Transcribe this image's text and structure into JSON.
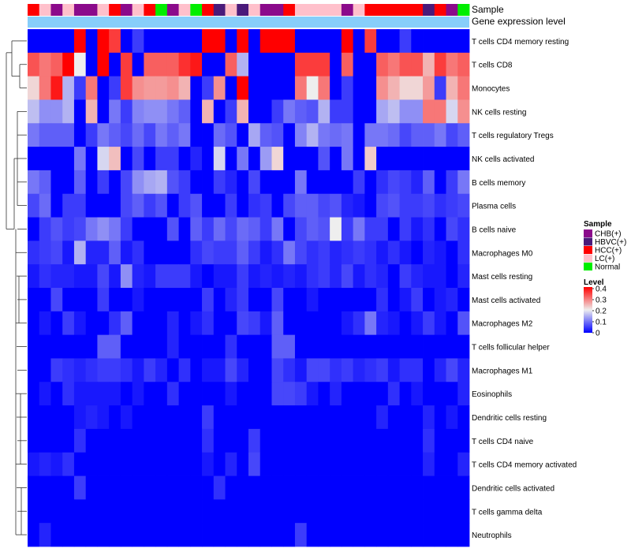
{
  "chart_data": {
    "type": "heatmap",
    "title": "",
    "annotations": {
      "sample_label": "Sample",
      "expression_label": "Gene expression level"
    },
    "legend": {
      "position": "right",
      "sample_title": "Sample",
      "level_title": "Level",
      "groups": [
        {
          "name": "CHB(+)",
          "color": "#8B0A8B"
        },
        {
          "name": "HBVC(+)",
          "color": "#4A1A7A"
        },
        {
          "name": "HCC(+)",
          "color": "#FF0000"
        },
        {
          "name": "LC(+)",
          "color": "#FFC0CB"
        },
        {
          "name": "Normal",
          "color": "#00EE00"
        }
      ],
      "level_ticks": [
        "0",
        "0.1",
        "0.2",
        "0.3",
        "0.4"
      ],
      "level_range": [
        0,
        0.4
      ]
    },
    "colors": {
      "low": "#0000FF",
      "mid": "#EEEEEE",
      "high": "#FF0000",
      "expression_bar": "#87CEFA"
    },
    "columns_sample": [
      "HCC(+)",
      "LC(+)",
      "CHB(+)",
      "LC(+)",
      "CHB(+)",
      "CHB(+)",
      "LC(+)",
      "HCC(+)",
      "CHB(+)",
      "LC(+)",
      "HCC(+)",
      "Normal",
      "CHB(+)",
      "LC(+)",
      "Normal",
      "HCC(+)",
      "HBVC(+)",
      "LC(+)",
      "HBVC(+)",
      "LC(+)",
      "CHB(+)",
      "CHB(+)",
      "HCC(+)",
      "LC(+)",
      "LC(+)",
      "LC(+)",
      "LC(+)",
      "CHB(+)",
      "LC(+)",
      "HCC(+)",
      "HCC(+)",
      "HCC(+)",
      "HCC(+)",
      "HCC(+)",
      "HBVC(+)",
      "HCC(+)",
      "CHB(+)",
      "Normal"
    ],
    "rows": [
      {
        "name": "T cells CD4 memory resting",
        "values": [
          0,
          0,
          0,
          0,
          0.4,
          0,
          0.4,
          0.35,
          0,
          0.05,
          0,
          0,
          0,
          0,
          0,
          0.4,
          0.4,
          0,
          0.4,
          0,
          0.4,
          0.4,
          0.4,
          0,
          0,
          0,
          0,
          0.4,
          0,
          0.35,
          0,
          0,
          0.05,
          0,
          0,
          0,
          0,
          0
        ]
      },
      {
        "name": "T cells CD8",
        "values": [
          0.33,
          0.3,
          0.32,
          0.4,
          0.2,
          0,
          0.4,
          0,
          0.35,
          0,
          0.32,
          0.32,
          0.32,
          0.36,
          0.38,
          0,
          0,
          0.32,
          0.15,
          0,
          0,
          0,
          0,
          0.35,
          0.35,
          0.35,
          0,
          0.32,
          0,
          0,
          0.32,
          0.3,
          0.33,
          0.33,
          0.25,
          0.35,
          0.3,
          0.32
        ]
      },
      {
        "name": "Monocytes",
        "values": [
          0.22,
          0.3,
          0.38,
          0.15,
          0.05,
          0.3,
          0,
          0.05,
          0.35,
          0.28,
          0.27,
          0.27,
          0.28,
          0.25,
          0,
          0.05,
          0.28,
          0,
          0.4,
          0,
          0,
          0,
          0,
          0.3,
          0.2,
          0.3,
          0,
          0.05,
          0,
          0,
          0.28,
          0.25,
          0.22,
          0.22,
          0.27,
          0.05,
          0.25,
          0.3
        ]
      },
      {
        "name": "NK cells resting",
        "values": [
          0.16,
          0.12,
          0.12,
          0.15,
          0,
          0.25,
          0,
          0.1,
          0.05,
          0.11,
          0.12,
          0.12,
          0.1,
          0.08,
          0,
          0.25,
          0,
          0.05,
          0.25,
          0,
          0,
          0.05,
          0.1,
          0.08,
          0.07,
          0.15,
          0.05,
          0.05,
          0,
          0,
          0.14,
          0.16,
          0.12,
          0.12,
          0.3,
          0.3,
          0.18,
          0.28
        ]
      },
      {
        "name": "T cells regulatory  Tregs",
        "values": [
          0.1,
          0.08,
          0.08,
          0.08,
          0,
          0.05,
          0.1,
          0.08,
          0.06,
          0.09,
          0.06,
          0.1,
          0.08,
          0.1,
          0,
          0,
          0.09,
          0.07,
          0,
          0.14,
          0.08,
          0.07,
          0,
          0.11,
          0.15,
          0.1,
          0.09,
          0.1,
          0,
          0.1,
          0.1,
          0.09,
          0.06,
          0.08,
          0.08,
          0.1,
          0.06,
          0.08
        ]
      },
      {
        "name": "NK cells activated",
        "values": [
          0,
          0,
          0,
          0,
          0.1,
          0,
          0.18,
          0.24,
          0,
          0.06,
          0,
          0.05,
          0.05,
          0,
          0.03,
          0,
          0.18,
          0,
          0.1,
          0,
          0.13,
          0.22,
          0,
          0,
          0,
          0.07,
          0,
          0.1,
          0,
          0.23,
          0,
          0,
          0,
          0,
          0,
          0,
          0,
          0
        ]
      },
      {
        "name": "B cells memory",
        "values": [
          0.1,
          0.08,
          0,
          0,
          0.08,
          0,
          0.05,
          0,
          0.06,
          0.12,
          0.14,
          0.15,
          0.07,
          0.05,
          0,
          0,
          0.05,
          0.03,
          0,
          0.06,
          0,
          0,
          0,
          0.1,
          0,
          0,
          0,
          0,
          0.05,
          0,
          0.04,
          0.06,
          0.05,
          0.03,
          0.08,
          0,
          0.05,
          0.1
        ]
      },
      {
        "name": "Plasma cells",
        "values": [
          0.06,
          0.09,
          0,
          0.05,
          0.05,
          0,
          0,
          0,
          0.06,
          0.08,
          0.05,
          0.07,
          0,
          0.05,
          0.07,
          0,
          0,
          0.05,
          0,
          0.04,
          0.05,
          0,
          0.06,
          0.08,
          0.08,
          0.06,
          0.07,
          0.03,
          0.02,
          0,
          0.06,
          0.07,
          0.05,
          0.05,
          0.06,
          0.04,
          0.05,
          0.06
        ]
      },
      {
        "name": "B cells naive",
        "values": [
          0,
          0.05,
          0.07,
          0.05,
          0.06,
          0.1,
          0.12,
          0.1,
          0.05,
          0,
          0,
          0,
          0.07,
          0,
          0.08,
          0.05,
          0.09,
          0.06,
          0.09,
          0.08,
          0.05,
          0.1,
          0,
          0.06,
          0.08,
          0.07,
          0.2,
          0.05,
          0.1,
          0.05,
          0.05,
          0,
          0.05,
          0.02,
          0.04,
          0,
          0.06,
          0.04
        ]
      },
      {
        "name": "Macrophages M0",
        "values": [
          0.04,
          0.05,
          0.06,
          0.02,
          0.15,
          0.03,
          0.03,
          0.08,
          0.02,
          0.04,
          0,
          0,
          0,
          0,
          0.04,
          0.06,
          0.05,
          0.05,
          0.08,
          0.05,
          0.02,
          0.04,
          0.1,
          0.06,
          0.04,
          0.05,
          0.03,
          0.04,
          0.05,
          0.04,
          0.02,
          0.04,
          0.02,
          0,
          0.03,
          0.02,
          0,
          0.04
        ]
      },
      {
        "name": "Mast cells resting",
        "values": [
          0.02,
          0.04,
          0.03,
          0.03,
          0.02,
          0.02,
          0.06,
          0.02,
          0.12,
          0.03,
          0.02,
          0.05,
          0.05,
          0.05,
          0.02,
          0,
          0.02,
          0.02,
          0.05,
          0.02,
          0.03,
          0.02,
          0.03,
          0.02,
          0.04,
          0.05,
          0.03,
          0.06,
          0.02,
          0.04,
          0.03,
          0,
          0.05,
          0.03,
          0.02,
          0.02,
          0,
          0.03
        ]
      },
      {
        "name": "Mast cells activated",
        "values": [
          0,
          0,
          0.06,
          0,
          0,
          0,
          0.05,
          0,
          0,
          0.02,
          0,
          0,
          0,
          0,
          0,
          0.05,
          0,
          0.03,
          0.05,
          0,
          0,
          0.06,
          0,
          0,
          0.02,
          0,
          0,
          0,
          0,
          0,
          0.04,
          0,
          0.02,
          0.05,
          0,
          0.02,
          0.03,
          0
        ]
      },
      {
        "name": "Macrophages M2",
        "values": [
          0,
          0.02,
          0,
          0.05,
          0.02,
          0,
          0,
          0.04,
          0.08,
          0,
          0,
          0,
          0.03,
          0,
          0.02,
          0.04,
          0,
          0,
          0.06,
          0.05,
          0.02,
          0.08,
          0,
          0,
          0,
          0,
          0,
          0.02,
          0.04,
          0.1,
          0.03,
          0.02,
          0,
          0.02,
          0.05,
          0.02,
          0,
          0.07
        ]
      },
      {
        "name": "T cells follicular helper",
        "values": [
          0,
          0,
          0,
          0,
          0,
          0,
          0.08,
          0.08,
          0,
          0,
          0,
          0,
          0.03,
          0,
          0,
          0,
          0,
          0.04,
          0,
          0,
          0,
          0.08,
          0.08,
          0,
          0,
          0,
          0,
          0,
          0,
          0,
          0,
          0,
          0,
          0,
          0,
          0,
          0,
          0
        ]
      },
      {
        "name": "Macrophages M1",
        "values": [
          0,
          0,
          0.05,
          0.04,
          0.03,
          0.04,
          0.05,
          0.05,
          0.04,
          0.02,
          0.05,
          0.03,
          0,
          0.04,
          0,
          0.02,
          0.02,
          0.06,
          0.03,
          0,
          0,
          0.06,
          0.04,
          0.02,
          0.06,
          0.06,
          0.04,
          0.05,
          0.03,
          0.04,
          0.05,
          0.02,
          0.04,
          0.04,
          0,
          0.03,
          0.06,
          0.03
        ]
      },
      {
        "name": "Eosinophils",
        "values": [
          0,
          0.02,
          0,
          0.04,
          0.02,
          0.02,
          0.02,
          0.02,
          0,
          0.02,
          0,
          0,
          0.04,
          0,
          0,
          0,
          0,
          0.02,
          0,
          0,
          0,
          0.06,
          0.06,
          0.05,
          0.02,
          0,
          0.03,
          0,
          0,
          0,
          0,
          0.04,
          0,
          0.02,
          0,
          0,
          0,
          0.03
        ]
      },
      {
        "name": "Dendritic cells resting",
        "values": [
          0,
          0,
          0,
          0,
          0.02,
          0.03,
          0.02,
          0,
          0.02,
          0,
          0,
          0,
          0,
          0,
          0,
          0.05,
          0,
          0,
          0,
          0,
          0,
          0,
          0,
          0,
          0,
          0,
          0,
          0,
          0,
          0,
          0.03,
          0,
          0,
          0,
          0.03,
          0,
          0.02,
          0
        ]
      },
      {
        "name": "T cells CD4 naive",
        "values": [
          0,
          0,
          0,
          0,
          0.04,
          0,
          0,
          0,
          0,
          0,
          0,
          0,
          0,
          0,
          0,
          0.04,
          0,
          0,
          0,
          0.05,
          0,
          0,
          0,
          0,
          0,
          0,
          0,
          0,
          0,
          0,
          0,
          0,
          0,
          0,
          0.04,
          0,
          0,
          0
        ]
      },
      {
        "name": "T cells CD4 memory activated",
        "values": [
          0.02,
          0.03,
          0.02,
          0.04,
          0,
          0,
          0,
          0,
          0,
          0,
          0,
          0,
          0,
          0,
          0,
          0.02,
          0,
          0.03,
          0,
          0.06,
          0,
          0,
          0,
          0,
          0,
          0,
          0,
          0,
          0,
          0,
          0,
          0,
          0,
          0,
          0.03,
          0,
          0,
          0.03
        ]
      },
      {
        "name": "Dendritic cells activated",
        "values": [
          0,
          0,
          0,
          0,
          0.05,
          0,
          0,
          0,
          0,
          0,
          0,
          0,
          0,
          0,
          0,
          0,
          0.04,
          0,
          0,
          0,
          0,
          0,
          0,
          0,
          0,
          0,
          0,
          0,
          0,
          0,
          0,
          0,
          0,
          0,
          0,
          0,
          0,
          0
        ]
      },
      {
        "name": "T cells gamma delta",
        "values": [
          0,
          0,
          0,
          0,
          0,
          0,
          0,
          0,
          0,
          0,
          0,
          0,
          0,
          0,
          0,
          0,
          0,
          0,
          0,
          0,
          0,
          0,
          0,
          0,
          0,
          0,
          0,
          0,
          0,
          0,
          0,
          0,
          0,
          0,
          0,
          0,
          0,
          0
        ]
      },
      {
        "name": "Neutrophils",
        "values": [
          0,
          0.03,
          0,
          0,
          0,
          0,
          0,
          0,
          0,
          0,
          0,
          0,
          0,
          0,
          0,
          0,
          0,
          0,
          0,
          0,
          0,
          0,
          0,
          0.05,
          0,
          0,
          0,
          0,
          0,
          0,
          0,
          0,
          0,
          0,
          0,
          0,
          0,
          0
        ]
      }
    ]
  }
}
